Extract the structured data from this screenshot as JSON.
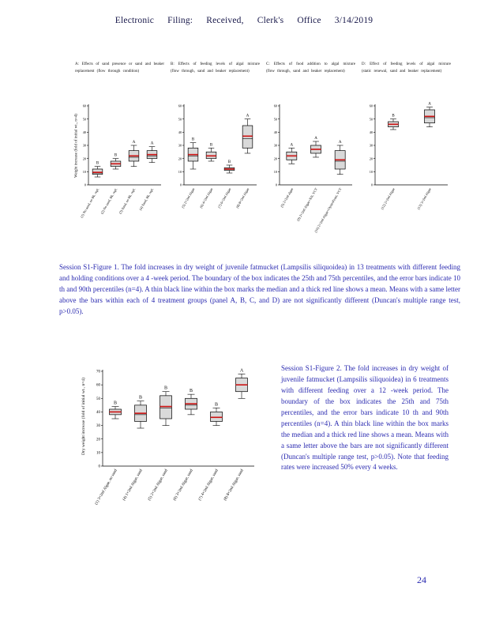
{
  "header": {
    "title": "Electronic Filing: Received, Clerk's Office 3/14/2019"
  },
  "page_number": "24",
  "figure1_caption": "Session S1-Figure 1. The fold increases in dry weight of juvenile fatmucket (Lampsilis siliquoidea) in 13 treatments with different feeding and holding conditions over a 4 -week period. The boundary of the box indicates the 25th and 75th percentiles, and the error bars indicate 10 th and 90th percentiles (n=4). A thin black line within the box marks the median and a thick red line shows a mean. Means with a same letter above the bars within each of 4 treatment groups (panel A, B, C, and D) are not significantly different (Duncan's multiple range test, p>0.05).",
  "figure2_caption": "Session S1-Figure 2. The fold increases in dry weight of juvenile fatmucket (Lampsilis siliquoidea) in 6 treatments with different feeding over a 12 -week period. The boundary of the box indicates the 25th and 75th percentiles, and the error bars indicate 10 th and 90th percentiles (n=4). A thin black line within the box marks the median and a thick red line shows a mean. Means with a same letter above the bars are not significantly different (Duncan's multiple range test, p>0.05). Note that feeding rates were increased 50% every 4 weeks.",
  "colors": {
    "caption_blue": "#2a2ab0",
    "mean_red": "#cc1111",
    "box_fill": "#d9d9d9"
  },
  "chart_data": [
    {
      "type": "box",
      "figure": "Session S1-Figure 1",
      "ylabel": "Weight increase (fold of initial wt., n=4)",
      "ylim": [
        0,
        60
      ],
      "yticks": [
        0,
        10,
        20,
        30,
        40,
        50,
        60
      ],
      "panels": [
        {
          "label": "A",
          "title": "A: Effects of sand presence or sand and beaker replacement (flow through condition)",
          "boxes": [
            {
              "category": "(1) No sand, no Bk. repl.",
              "letter": "B",
              "whislo": 6,
              "q1": 8,
              "median": 9,
              "mean": 9.5,
              "q3": 12,
              "whishi": 14
            },
            {
              "category": "(2) No sand, Bk. repl.",
              "letter": "B",
              "whislo": 12,
              "q1": 14,
              "median": 16,
              "mean": 16,
              "q3": 18,
              "whishi": 20
            },
            {
              "category": "(3) Sand, no Bk. repl.",
              "letter": "A",
              "whislo": 14,
              "q1": 18,
              "median": 21,
              "mean": 22,
              "q3": 26,
              "whishi": 30
            },
            {
              "category": "(4) Sand, Bk. repl.",
              "letter": "A",
              "whislo": 17,
              "q1": 20,
              "median": 22,
              "mean": 23,
              "q3": 26,
              "whishi": 29
            }
          ]
        },
        {
          "label": "B",
          "title": "B: Effects of feeding levels of algal mixture (flow through, sand and beaker replacement)",
          "boxes": [
            {
              "category": "(5) 2×2ml Algae",
              "letter": "B",
              "whislo": 12,
              "q1": 18,
              "median": 22,
              "mean": 23,
              "q3": 28,
              "whishi": 32
            },
            {
              "category": "(6) 4×2ml Algae",
              "letter": "B",
              "whislo": 18,
              "q1": 20,
              "median": 22,
              "mean": 22,
              "q3": 25,
              "whishi": 28
            },
            {
              "category": "(7) 6×2ml Algae",
              "letter": "B",
              "whislo": 9,
              "q1": 11,
              "median": 12,
              "mean": 12,
              "q3": 13,
              "whishi": 15
            },
            {
              "category": "(8) 8×2ml Algae",
              "letter": "A",
              "whislo": 24,
              "q1": 28,
              "median": 35,
              "mean": 37,
              "q3": 45,
              "whishi": 50
            }
          ]
        },
        {
          "label": "C",
          "title": "C: Effects of food addition to algal mixture (flow through, sand and beaker replacement)",
          "boxes": [
            {
              "category": "(5) 2×2ml algae",
              "letter": "A",
              "whislo": 16,
              "q1": 19,
              "median": 22,
              "mean": 22,
              "q3": 25,
              "whishi": 28
            },
            {
              "category": "(9) 2×2ml Algae+Silt, VCT",
              "letter": "A",
              "whislo": 21,
              "q1": 24,
              "median": 27,
              "mean": 27,
              "q3": 30,
              "whishi": 33
            },
            {
              "category": "(10) 2×2ml Algae+OysterFeast, VCT",
              "letter": "A",
              "whislo": 8,
              "q1": 12,
              "median": 18,
              "mean": 19,
              "q3": 26,
              "whishi": 30
            }
          ]
        },
        {
          "label": "D",
          "title": "D: Effect of feeding levels of algal mixture (static renewal, sand and beaker replacement)",
          "boxes": [
            {
              "category": "(12) 2×2ml Algae",
              "letter": "B",
              "whislo": 42,
              "q1": 44,
              "median": 46,
              "mean": 46,
              "q3": 48,
              "whishi": 50
            },
            {
              "category": "(13) 3×2ml Algae",
              "letter": "A",
              "whislo": 44,
              "q1": 47,
              "median": 51,
              "mean": 52,
              "q3": 57,
              "whishi": 59
            }
          ]
        }
      ]
    },
    {
      "type": "box",
      "figure": "Session S1-Figure 2",
      "ylabel": "Dry weight increase (fold of initial wt., n=4)",
      "ylim": [
        0,
        70
      ],
      "yticks": [
        0,
        10,
        20,
        30,
        40,
        50,
        60,
        70
      ],
      "panels": [
        {
          "label": "",
          "title": "",
          "boxes": [
            {
              "category": "(1) 3×2ml Algae, no sand",
              "letter": "B",
              "whislo": 35,
              "q1": 38,
              "median": 40,
              "mean": 40,
              "q3": 42,
              "whishi": 44
            },
            {
              "category": "(4) 1×2ml Algae, sand",
              "letter": "B",
              "whislo": 28,
              "q1": 33,
              "median": 38,
              "mean": 39,
              "q3": 45,
              "whishi": 48
            },
            {
              "category": "(5) 2×2ml Algae, sand",
              "letter": "B",
              "whislo": 30,
              "q1": 35,
              "median": 43,
              "mean": 44,
              "q3": 52,
              "whishi": 55
            },
            {
              "category": "(6) 3×2ml Algae, sand",
              "letter": "B",
              "whislo": 38,
              "q1": 42,
              "median": 45,
              "mean": 46,
              "q3": 50,
              "whishi": 53
            },
            {
              "category": "(7) 4×2ml Algae, sand",
              "letter": "B",
              "whislo": 30,
              "q1": 33,
              "median": 36,
              "mean": 36,
              "q3": 40,
              "whishi": 43
            },
            {
              "category": "(8) 8×2ml Algae, sand",
              "letter": "A",
              "whislo": 50,
              "q1": 55,
              "median": 60,
              "mean": 60,
              "q3": 65,
              "whishi": 68
            }
          ]
        }
      ]
    }
  ]
}
